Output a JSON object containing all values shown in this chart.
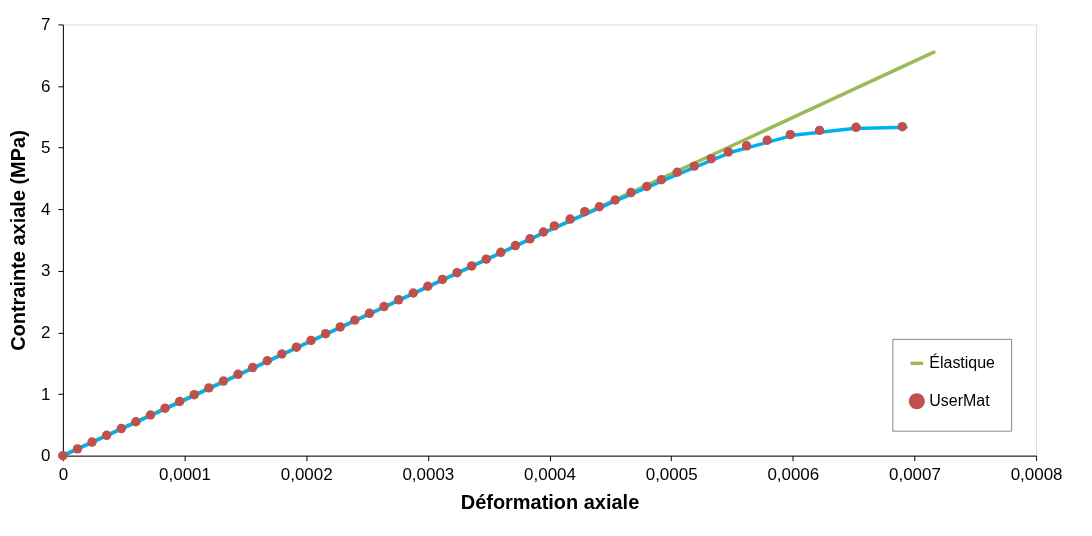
{
  "chart_data": {
    "type": "line",
    "xlabel": "Déformation axiale",
    "ylabel": "Contrainte axiale (MPa)",
    "xlim": [
      0,
      0.0008
    ],
    "xticks": [
      0,
      {
        "value": 0.0001,
        "label": "0,0001"
      },
      {
        "value": 0.0002,
        "label": "0,0002"
      },
      {
        "value": 0.0003,
        "label": "0,0003"
      },
      {
        "value": 0.0004,
        "label": "0,0004"
      },
      {
        "value": 0.0005,
        "label": "0,0005"
      },
      {
        "value": 0.0006,
        "label": "0,0006"
      },
      {
        "value": 0.0007,
        "label": "0,0007"
      },
      {
        "value": 0.0008,
        "label": "0,0008"
      }
    ],
    "ylim": [
      0,
      7
    ],
    "yticks": [
      0,
      1,
      2,
      3,
      4,
      5,
      6,
      7
    ],
    "grid": false,
    "legend": "bottom right",
    "series": [
      {
        "name": "Élastique",
        "type": "line",
        "color": "#9bbb59",
        "x": [
          0,
          0.000716
        ],
        "values": [
          0,
          6.55
        ]
      },
      {
        "type": "line",
        "color": "#00b0f0",
        "x": [
          0,
          0.0001,
          0.0002,
          0.0003,
          0.0004,
          0.00045,
          0.0005,
          0.00055,
          0.0006,
          0.00065,
          0.000693
        ],
        "values": [
          0,
          0.9,
          1.82,
          2.74,
          3.66,
          4.1,
          4.52,
          4.93,
          5.2,
          5.31,
          5.33
        ]
      },
      {
        "name": "UserMat",
        "type": "scatter",
        "marker": "circle",
        "color": "#c0504d",
        "x": [
          0,
          1.2e-05,
          2.4e-05,
          3.6e-05,
          4.8e-05,
          6e-05,
          7.2e-05,
          8.4e-05,
          9.6e-05,
          0.000108,
          0.00012,
          0.000132,
          0.000144,
          0.000156,
          0.000168,
          0.00018,
          0.000192,
          0.000204,
          0.000216,
          0.000228,
          0.00024,
          0.000252,
          0.000264,
          0.000276,
          0.000288,
          0.0003,
          0.000312,
          0.000324,
          0.000336,
          0.000348,
          0.00036,
          0.000372,
          0.000384,
          0.000395,
          0.000404,
          0.000417,
          0.000429,
          0.000441,
          0.000454,
          0.000467,
          0.00048,
          0.000492,
          0.000505,
          0.000519,
          0.000533,
          0.000547,
          0.000562,
          0.000579,
          0.000598,
          0.000622,
          0.000652,
          0.00069
        ],
        "values": [
          0,
          0.11,
          0.22,
          0.33,
          0.44,
          0.55,
          0.66,
          0.77,
          0.88,
          0.99,
          1.1,
          1.21,
          1.32,
          1.43,
          1.54,
          1.65,
          1.76,
          1.87,
          1.98,
          2.09,
          2.2,
          2.31,
          2.42,
          2.53,
          2.64,
          2.75,
          2.86,
          2.97,
          3.08,
          3.19,
          3.3,
          3.41,
          3.52,
          3.63,
          3.73,
          3.84,
          3.96,
          4.04,
          4.15,
          4.27,
          4.37,
          4.48,
          4.6,
          4.7,
          4.82,
          4.93,
          5.03,
          5.12,
          5.21,
          5.28,
          5.33,
          5.34
        ]
      }
    ]
  }
}
